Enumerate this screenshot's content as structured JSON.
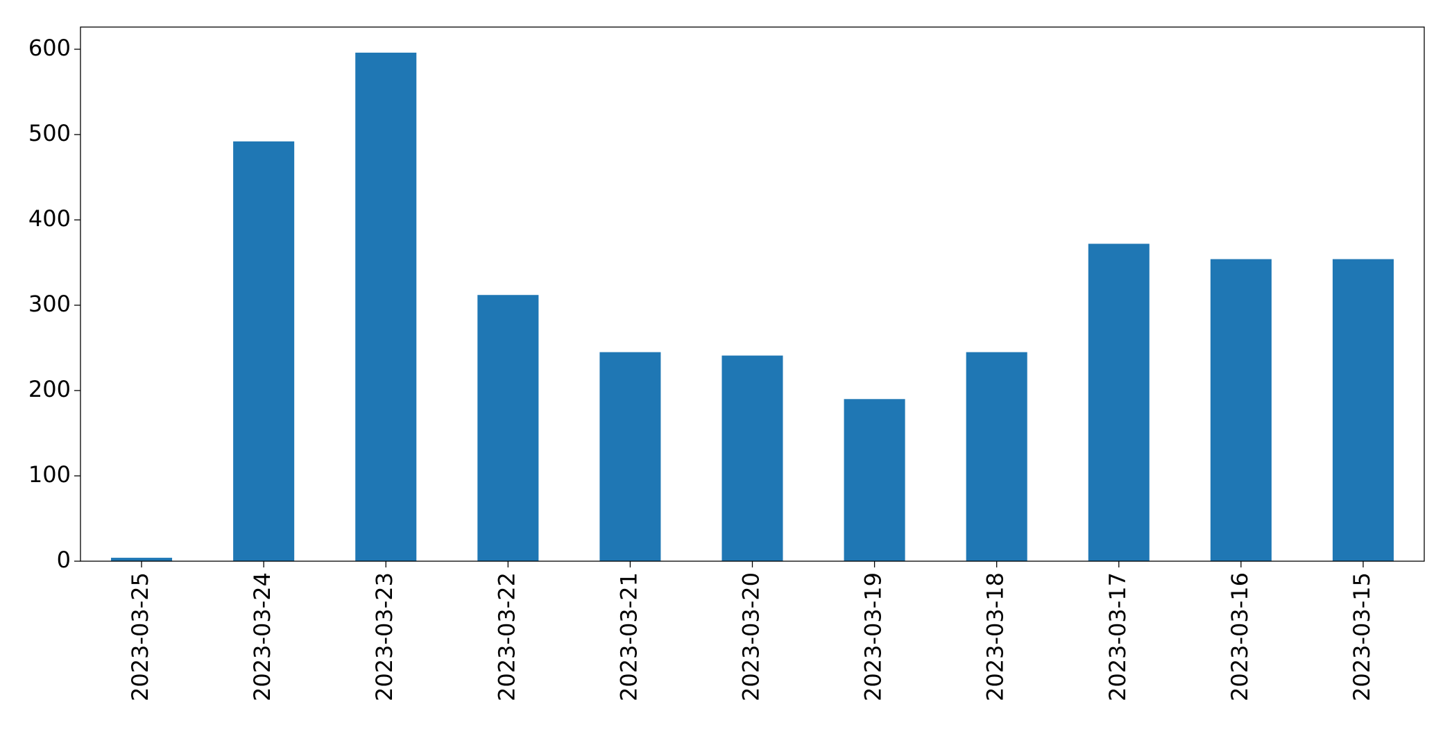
{
  "chart_data": {
    "type": "bar",
    "categories": [
      "2023-03-25",
      "2023-03-24",
      "2023-03-23",
      "2023-03-22",
      "2023-03-21",
      "2023-03-20",
      "2023-03-19",
      "2023-03-18",
      "2023-03-17",
      "2023-03-16",
      "2023-03-15"
    ],
    "values": [
      4,
      492,
      596,
      312,
      245,
      241,
      190,
      245,
      372,
      354,
      354
    ],
    "color": "#1f77b4",
    "ylim": [
      0,
      626
    ],
    "yticks": [
      0,
      100,
      200,
      300,
      400,
      500,
      600
    ],
    "grid": false
  }
}
